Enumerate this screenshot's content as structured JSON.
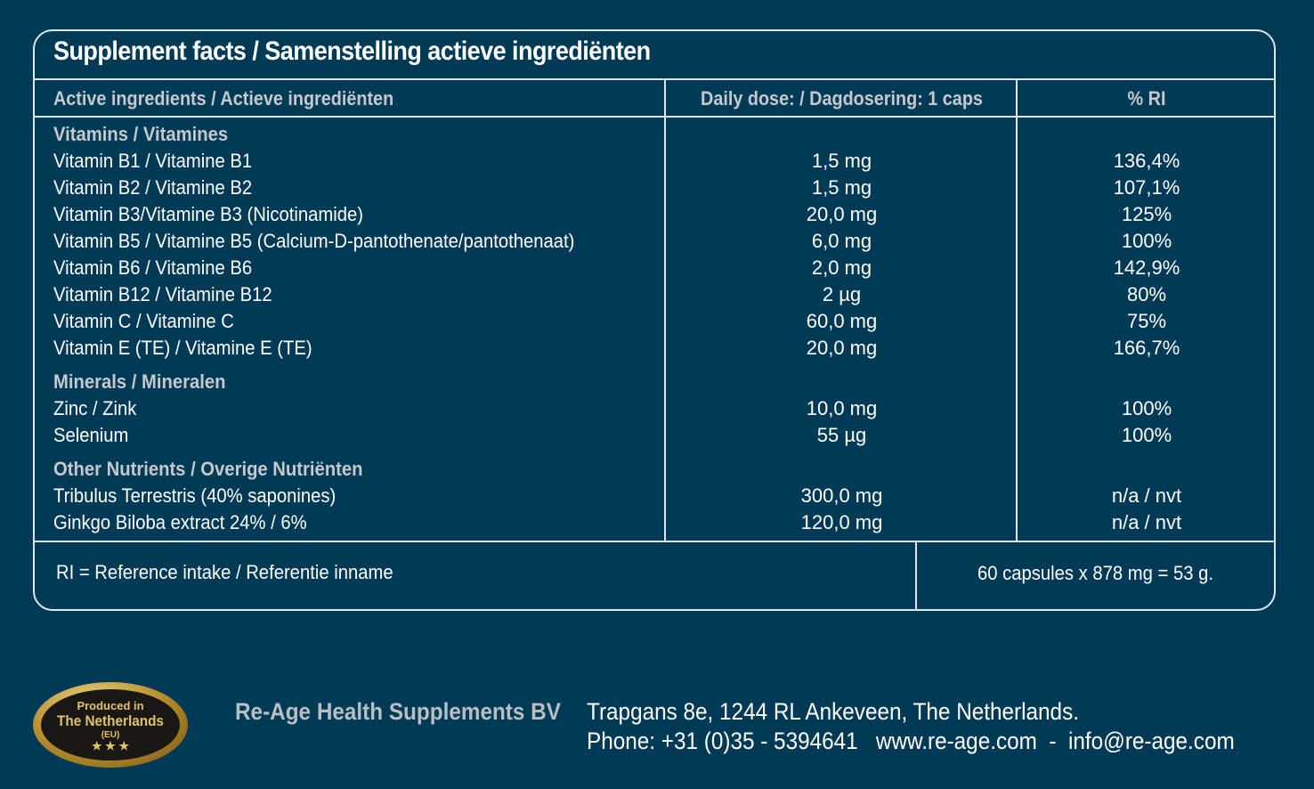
{
  "title": "Supplement facts / Samenstelling actieve ingrediënten",
  "headers": {
    "ingredients": "Active ingredients / Actieve ingrediënten",
    "dose": "Daily dose: / Dagdosering: 1 caps",
    "ri": "% RI"
  },
  "groups": [
    {
      "label": "Vitamins / Vitamines",
      "items": [
        {
          "name": "Vitamin B1 / Vitamine B1",
          "dose": "1,5 mg",
          "ri": "136,4%"
        },
        {
          "name": "Vitamin B2 / Vitamine B2",
          "dose": "1,5 mg",
          "ri": "107,1%"
        },
        {
          "name": "Vitamin B3/Vitamine B3 (Nicotinamide)",
          "dose": "20,0 mg",
          "ri": "125%"
        },
        {
          "name": "Vitamin B5 / Vitamine B5 (Calcium-D-pantothenate/pantothenaat)",
          "dose": "6,0 mg",
          "ri": "100%"
        },
        {
          "name": "Vitamin B6 / Vitamine B6",
          "dose": "2,0 mg",
          "ri": "142,9%"
        },
        {
          "name": "Vitamin B12 / Vitamine B12",
          "dose": "2 µg",
          "ri": "80%"
        },
        {
          "name": "Vitamin C / Vitamine C",
          "dose": "60,0 mg",
          "ri": "75%"
        },
        {
          "name": "Vitamin E (TE) / Vitamine E (TE)",
          "dose": "20,0 mg",
          "ri": "166,7%"
        }
      ]
    },
    {
      "label": "Minerals / Mineralen",
      "items": [
        {
          "name": "Zinc / Zink",
          "dose": "10,0 mg",
          "ri": "100%"
        },
        {
          "name": "Selenium",
          "dose": "55 µg",
          "ri": "100%"
        }
      ]
    },
    {
      "label": "Other Nutrients / Overige Nutriënten",
      "items": [
        {
          "name": "Tribulus Terrestris (40% saponines)",
          "dose": "300,0 mg",
          "ri": "n/a / nvt"
        },
        {
          "name": "Ginkgo Biloba extract 24% / 6%",
          "dose": "120,0 mg",
          "ri": "n/a / nvt"
        }
      ]
    }
  ],
  "footer": {
    "ri_note": "RI = Reference intake / Referentie inname",
    "package": "60 capsules x 878 mg = 53 g."
  },
  "badge": {
    "line1": "Produced in",
    "line2": "The Netherlands",
    "line3": "(EU)",
    "stars": "★ ★ ★"
  },
  "company": {
    "name": "Re-Age Health Supplements BV",
    "address": "Trapgans 8e, 1244 RL Ankeveen, The Netherlands.",
    "contact": "Phone: +31 (0)35 - 5394641   www.re-age.com  -  info@re-age.com"
  },
  "colors": {
    "background": "#003a57",
    "border": "#dfe6ea",
    "muted_text": "#c5c9cc",
    "badge_gold": "#e0c46a"
  }
}
